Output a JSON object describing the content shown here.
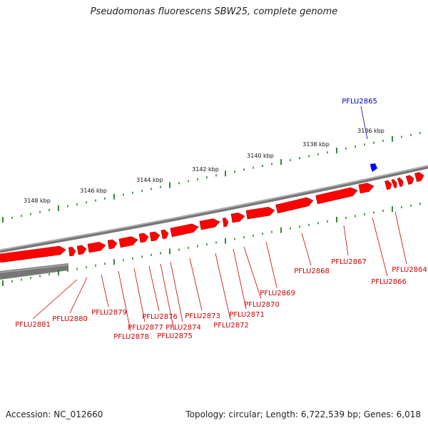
{
  "title": "Pseudomonas fluorescens SBW25, complete genome",
  "accession_label": "Accession: NC_012660",
  "summary": "Topology: circular; Length: 6,722,539 bp; Genes: 6,018",
  "colors": {
    "backbone": "#777777",
    "forward_gene": "#ff0000",
    "highlight_gene": "#0000ff",
    "ticks": "#1f7a1f",
    "label_red": "#cc0000",
    "label_blue": "#0000aa"
  },
  "scale_labels": [
    "3136 kbp",
    "3138 kbp",
    "3140 kbp",
    "3142 kbp",
    "3144 kbp",
    "3146 kbp",
    "3148 kbp"
  ],
  "highlight_label": "PFLU2865",
  "gene_labels": [
    "PFLU2864",
    "PFLU2866",
    "PFLU2867",
    "PFLU2868",
    "PFLU2869",
    "PFLU2870",
    "PFLU2871",
    "PFLU2872",
    "PFLU2873",
    "PFLU2874",
    "PFLU2875",
    "PFLU2876",
    "PFLU2877",
    "PFLU2878",
    "PFLU2879",
    "PFLU2880",
    "PFLU2881"
  ]
}
